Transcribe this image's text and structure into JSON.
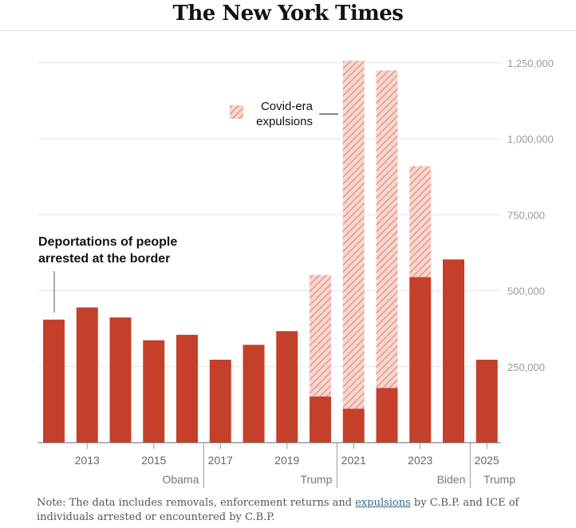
{
  "brand": "The New York Times",
  "chart_data": {
    "type": "bar",
    "stacked": true,
    "categories": [
      "2012",
      "2013",
      "2014",
      "2015",
      "2016",
      "2017",
      "2018",
      "2019",
      "2020",
      "2021",
      "2022",
      "2023",
      "2024",
      "2025"
    ],
    "series": [
      {
        "name": "Deportations of people arrested at the border",
        "color": "#c4402a",
        "values": [
          405000,
          445000,
          412000,
          337000,
          355000,
          273000,
          322000,
          367000,
          152000,
          112000,
          180000,
          545000,
          603000,
          273000
        ]
      },
      {
        "name": "Covid-era expulsions",
        "color": "#f2b7ab",
        "pattern": "hatched",
        "values": [
          0,
          0,
          0,
          0,
          0,
          0,
          0,
          0,
          400000,
          1145000,
          1045000,
          365000,
          0,
          0
        ]
      }
    ],
    "yticks": [
      250000,
      500000,
      750000,
      1000000,
      1250000
    ],
    "ytick_labels": [
      "250,000",
      "500,000",
      "750,000",
      "1,000,000",
      "1,250,000"
    ],
    "ylim": [
      0,
      1260000
    ],
    "xtick_labels": [
      {
        "label": "2013",
        "index": 1
      },
      {
        "label": "2015",
        "index": 3
      },
      {
        "label": "2017",
        "index": 5
      },
      {
        "label": "2019",
        "index": 7
      },
      {
        "label": "2021",
        "index": 9
      },
      {
        "label": "2023",
        "index": 11
      },
      {
        "label": "2025",
        "index": 13
      }
    ],
    "administrations": [
      {
        "name": "Obama",
        "start": 0,
        "end": 4
      },
      {
        "name": "Trump",
        "start": 5,
        "end": 8
      },
      {
        "name": "Biden",
        "start": 9,
        "end": 12
      },
      {
        "name": "Trump",
        "start": 13,
        "end": 13
      }
    ],
    "annotations": {
      "deportations": [
        "Deportations of people",
        "arrested at the border"
      ],
      "expulsions": [
        "Covid-era",
        "expulsions"
      ]
    }
  },
  "note": {
    "before": "Note: The data includes removals, enforcement returns and ",
    "link": "expulsions",
    "after": " by C.B.P. and ICE of individuals arrested or encountered by C.B.P."
  }
}
